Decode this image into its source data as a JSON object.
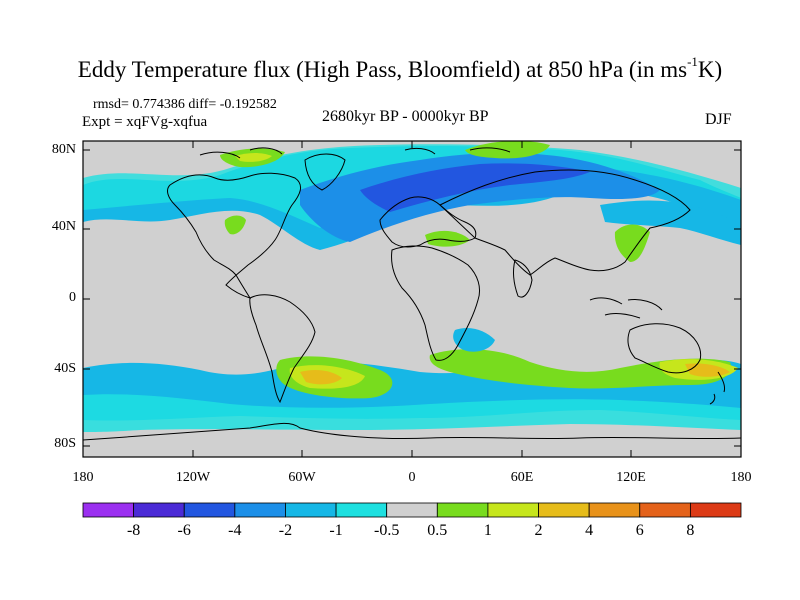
{
  "title": {
    "main": "Eddy Temperature flux (High Pass, Bloomfield) at 850 hPa (in ms",
    "sup": "-1",
    "end": "K)"
  },
  "stats_line": "rmsd= 0.774386 diff= -0.192582",
  "expt_line": "Expt = xqFVg-xqfua",
  "period": "2680kyr BP - 0000kyr BP",
  "season": "DJF",
  "lat_labels": [
    "80N",
    "40N",
    "0",
    "40S",
    "80S"
  ],
  "lon_labels": [
    "180",
    "120W",
    "60W",
    "0",
    "60E",
    "120E",
    "180"
  ],
  "colorbar": {
    "labels": [
      "-8",
      "-6",
      "-4",
      "-2",
      "-1",
      "-0.5",
      "0.5",
      "1",
      "2",
      "4",
      "6",
      "8"
    ],
    "colors": [
      "#9b30f0",
      "#4b2bd6",
      "#2256e0",
      "#1c8fe8",
      "#16b7e6",
      "#1ee0e0",
      "#d0d0d0",
      "#78dc1e",
      "#c6e61c",
      "#e6bc1a",
      "#e8921a",
      "#e4621a",
      "#dc3a16"
    ]
  },
  "map": {
    "background_color": "#d0d0d0",
    "coastline_color": "#000000"
  }
}
